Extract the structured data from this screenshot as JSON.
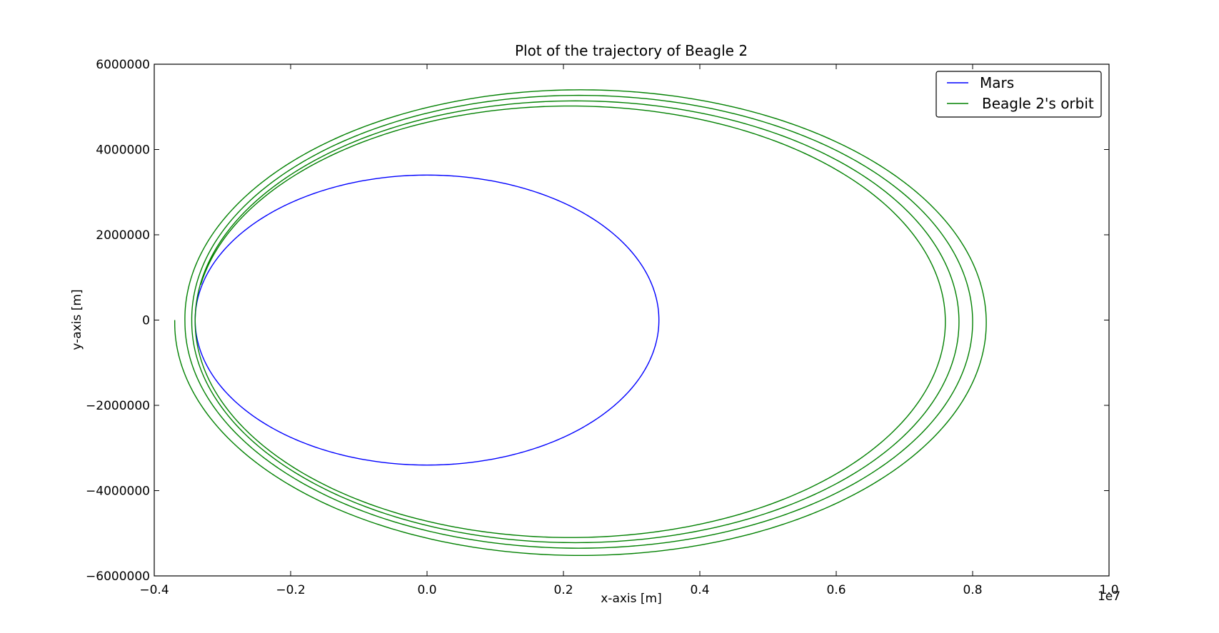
{
  "chart_data": {
    "type": "line",
    "title": "Plot of the trajectory of Beagle 2",
    "xlabel": "x-axis [m]",
    "ylabel": "y-axis [m]",
    "x_offset_label": "1e7",
    "xlim": [
      -0.4,
      1.0
    ],
    "ylim": [
      -6000000,
      6000000
    ],
    "x_ticks": [
      -0.4,
      -0.2,
      0.0,
      0.2,
      0.4,
      0.6,
      0.8,
      1.0
    ],
    "x_tick_labels": [
      "−0.4",
      "−0.2",
      "0.0",
      "0.2",
      "0.4",
      "0.6",
      "0.8",
      "1.0"
    ],
    "y_ticks": [
      6000000,
      4000000,
      2000000,
      0,
      -2000000,
      -4000000,
      -6000000
    ],
    "y_tick_labels": [
      "6000000",
      "4000000",
      "2000000",
      "0",
      "−2000000",
      "−4000000",
      "−6000000"
    ],
    "grid": false,
    "legend_position": "top-right",
    "series": [
      {
        "name": "Mars",
        "color": "#0000ff",
        "shape": "ellipse",
        "center": [
          0.0,
          0
        ],
        "radius_x": 0.34,
        "radius_y": 3400000
      },
      {
        "name": "Beagle 2's orbit",
        "color": "#008000",
        "shape": "spiral",
        "start": [
          -0.37,
          0
        ],
        "loops": [
          {
            "left": -0.37,
            "right": 0.82,
            "top": 5400000,
            "bottom": -5520000
          },
          {
            "left": -0.355,
            "right": 0.8,
            "top": 5270000,
            "bottom": -5350000
          },
          {
            "left": -0.345,
            "right": 0.78,
            "top": 5140000,
            "bottom": -5220000
          },
          {
            "left": -0.34,
            "right": 0.76,
            "top": 5020000,
            "bottom": -5100000
          }
        ]
      }
    ]
  }
}
